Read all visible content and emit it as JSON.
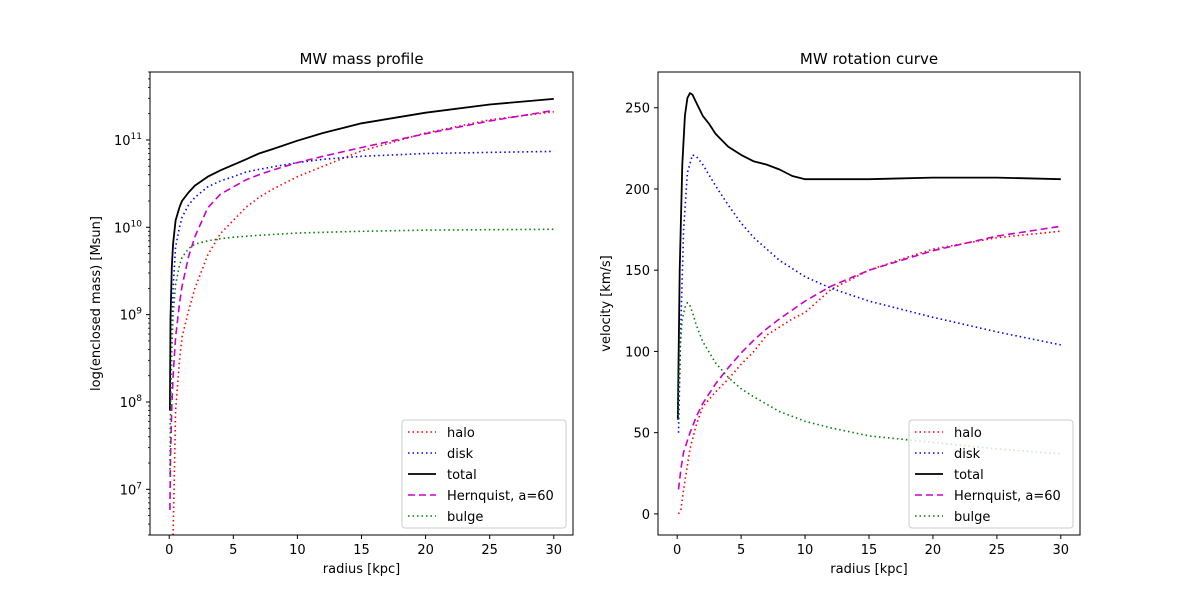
{
  "chart_data": [
    {
      "type": "line",
      "title": "MW mass profile",
      "xlabel": "radius [kpc]",
      "ylabel": "log(enclosed mass) [Msun]",
      "yscale": "log",
      "xlim": [
        -1.5,
        31.5
      ],
      "ylim": [
        3000000,
        600000000000
      ],
      "xticks": [
        0,
        5,
        10,
        15,
        20,
        25,
        30
      ],
      "yticks": [
        {
          "value": 10000000,
          "base": "10",
          "exp": "7"
        },
        {
          "value": 100000000,
          "base": "10",
          "exp": "8"
        },
        {
          "value": 1000000000,
          "base": "10",
          "exp": "9"
        },
        {
          "value": 10000000000,
          "base": "10",
          "exp": "10"
        },
        {
          "value": 100000000000,
          "base": "10",
          "exp": "11"
        }
      ],
      "grid": false,
      "legend_position": "lower-right",
      "series": [
        {
          "name": "halo",
          "color": "#ff0000",
          "style": "dotted",
          "x": [
            0.3,
            0.5,
            0.8,
            1.0,
            1.5,
            2.0,
            3.0,
            4.0,
            5.0,
            6.0,
            7.0,
            8.0,
            10.0,
            12.0,
            15.0,
            20.0,
            25.0,
            30.0
          ],
          "y": [
            3000000,
            80000000,
            300000000,
            550000000,
            1100000000,
            2000000000,
            4800000000,
            8500000000,
            12000000000,
            17000000000,
            22000000000,
            27000000000,
            38000000000,
            50000000000,
            75000000000,
            120000000000,
            170000000000,
            210000000000
          ]
        },
        {
          "name": "disk",
          "color": "#0000ff",
          "style": "dotted",
          "x": [
            0.1,
            0.3,
            0.5,
            0.8,
            1.0,
            1.5,
            2.0,
            3.0,
            4.0,
            5.0,
            6.0,
            7.0,
            8.0,
            10.0,
            12.0,
            15.0,
            20.0,
            25.0,
            30.0
          ],
          "y": [
            100000000,
            2000000000,
            6000000000,
            10000000000,
            13000000000,
            18000000000,
            22000000000,
            29000000000,
            34000000000,
            38000000000,
            43000000000,
            46000000000,
            49000000000,
            55000000000,
            60000000000,
            65000000000,
            70000000000,
            72000000000,
            74000000000
          ]
        },
        {
          "name": "total",
          "color": "#000000",
          "style": "solid",
          "x": [
            0.05,
            0.1,
            0.2,
            0.3,
            0.5,
            0.8,
            1.0,
            1.5,
            2.0,
            3.0,
            4.0,
            5.0,
            6.0,
            7.0,
            8.0,
            10.0,
            12.0,
            15.0,
            20.0,
            25.0,
            30.0
          ],
          "y": [
            80000000,
            900000000,
            3500000000,
            6500000000,
            12000000000,
            17000000000,
            20000000000,
            25000000000,
            30000000000,
            38000000000,
            45000000000,
            52000000000,
            60000000000,
            70000000000,
            78000000000,
            98000000000,
            120000000000,
            155000000000,
            205000000000,
            255000000000,
            295000000000
          ]
        },
        {
          "name": "Hernquist, a=60",
          "color": "#cc00cc",
          "style": "dashed",
          "x": [
            0.05,
            0.1,
            0.2,
            0.3,
            0.5,
            0.8,
            1.0,
            1.5,
            2.0,
            3.0,
            4.0,
            5.0,
            6.0,
            7.0,
            8.0,
            10.0,
            12.0,
            15.0,
            20.0,
            25.0,
            30.0
          ],
          "y": [
            5800000,
            23000000,
            90000000,
            200000000,
            550000000,
            1350000000,
            2100000000,
            4600000000,
            7800000000,
            16700000000,
            24000000000,
            29000000000,
            35000000000,
            40000000000,
            45000000000,
            55000000000,
            65000000000,
            82000000000,
            118000000000,
            165000000000,
            218000000000
          ]
        },
        {
          "name": "bulge",
          "color": "#008000",
          "style": "dotted",
          "x": [
            0.05,
            0.1,
            0.2,
            0.3,
            0.5,
            0.8,
            1.0,
            1.5,
            2.0,
            3.0,
            4.0,
            5.0,
            7.0,
            10.0,
            15.0,
            20.0,
            25.0,
            30.0
          ],
          "y": [
            15000000,
            80000000,
            400000000,
            1000000000,
            2200000000,
            3700000000,
            4500000000,
            5700000000,
            6400000000,
            7000000000,
            7400000000,
            7700000000,
            8100000000,
            8600000000,
            9000000000,
            9300000000,
            9400000000,
            9500000000
          ]
        }
      ]
    },
    {
      "type": "line",
      "title": "MW rotation curve",
      "xlabel": "radius [kpc]",
      "ylabel": "velocity [km/s]",
      "yscale": "linear",
      "xlim": [
        -1.5,
        31.5
      ],
      "ylim": [
        -13,
        272
      ],
      "xticks": [
        0,
        5,
        10,
        15,
        20,
        25,
        30
      ],
      "yticks": [
        0,
        50,
        100,
        150,
        200,
        250
      ],
      "grid": false,
      "legend_position": "lower-right",
      "series": [
        {
          "name": "halo",
          "color": "#ff0000",
          "style": "dotted",
          "x": [
            0.1,
            0.3,
            0.5,
            1.0,
            1.5,
            2.0,
            3.0,
            4.0,
            5.0,
            6.0,
            7.0,
            8.0,
            9.0,
            10.0,
            11.0,
            12.0,
            15.0,
            18.0,
            20.0,
            25.0,
            30.0
          ],
          "y": [
            0,
            3,
            15,
            40,
            55,
            66,
            75,
            83,
            92,
            100,
            110,
            115,
            120,
            124,
            131,
            138,
            150,
            158,
            163,
            170,
            174
          ]
        },
        {
          "name": "disk",
          "color": "#0000ff",
          "style": "dotted",
          "x": [
            0.1,
            0.3,
            0.5,
            0.8,
            1.2,
            1.5,
            2.0,
            3.0,
            4.0,
            5.0,
            6.0,
            8.0,
            10.0,
            12.0,
            15.0,
            20.0,
            25.0,
            30.0
          ],
          "y": [
            50,
            120,
            175,
            210,
            221,
            220,
            215,
            202,
            190,
            179,
            170,
            156,
            146,
            139,
            131,
            121,
            112,
            104
          ]
        },
        {
          "name": "total",
          "color": "#000000",
          "style": "solid",
          "x": [
            0.05,
            0.2,
            0.4,
            0.6,
            0.8,
            1.0,
            1.2,
            1.5,
            2.0,
            2.5,
            3.0,
            4.0,
            5.0,
            6.0,
            7.0,
            8.0,
            9.0,
            10.0,
            12.0,
            15.0,
            20.0,
            25.0,
            30.0
          ],
          "y": [
            58,
            150,
            215,
            245,
            256,
            259,
            258,
            253,
            245,
            240,
            234,
            226,
            221,
            217,
            215,
            212,
            208,
            206,
            206,
            206,
            207,
            207,
            206
          ]
        },
        {
          "name": "Hernquist, a=60",
          "color": "#cc00cc",
          "style": "dashed",
          "x": [
            0.1,
            0.3,
            0.5,
            1.0,
            1.5,
            2.0,
            3.0,
            4.0,
            5.0,
            6.0,
            7.0,
            8.0,
            10.0,
            12.0,
            15.0,
            20.0,
            25.0,
            30.0
          ],
          "y": [
            15,
            28,
            38,
            50,
            60,
            68,
            80,
            90,
            99,
            107,
            114,
            120,
            131,
            140,
            150,
            162,
            171,
            177
          ]
        },
        {
          "name": "bulge",
          "color": "#008000",
          "style": "dotted",
          "x": [
            0.05,
            0.2,
            0.4,
            0.6,
            0.8,
            1.0,
            1.2,
            1.5,
            2.0,
            3.0,
            4.0,
            5.0,
            6.0,
            8.0,
            10.0,
            12.0,
            15.0,
            20.0,
            25.0,
            30.0
          ],
          "y": [
            58,
            100,
            120,
            127,
            130,
            128,
            124,
            116,
            106,
            93,
            84,
            77,
            72,
            63,
            57,
            53,
            48,
            44,
            40,
            37
          ]
        }
      ]
    }
  ]
}
